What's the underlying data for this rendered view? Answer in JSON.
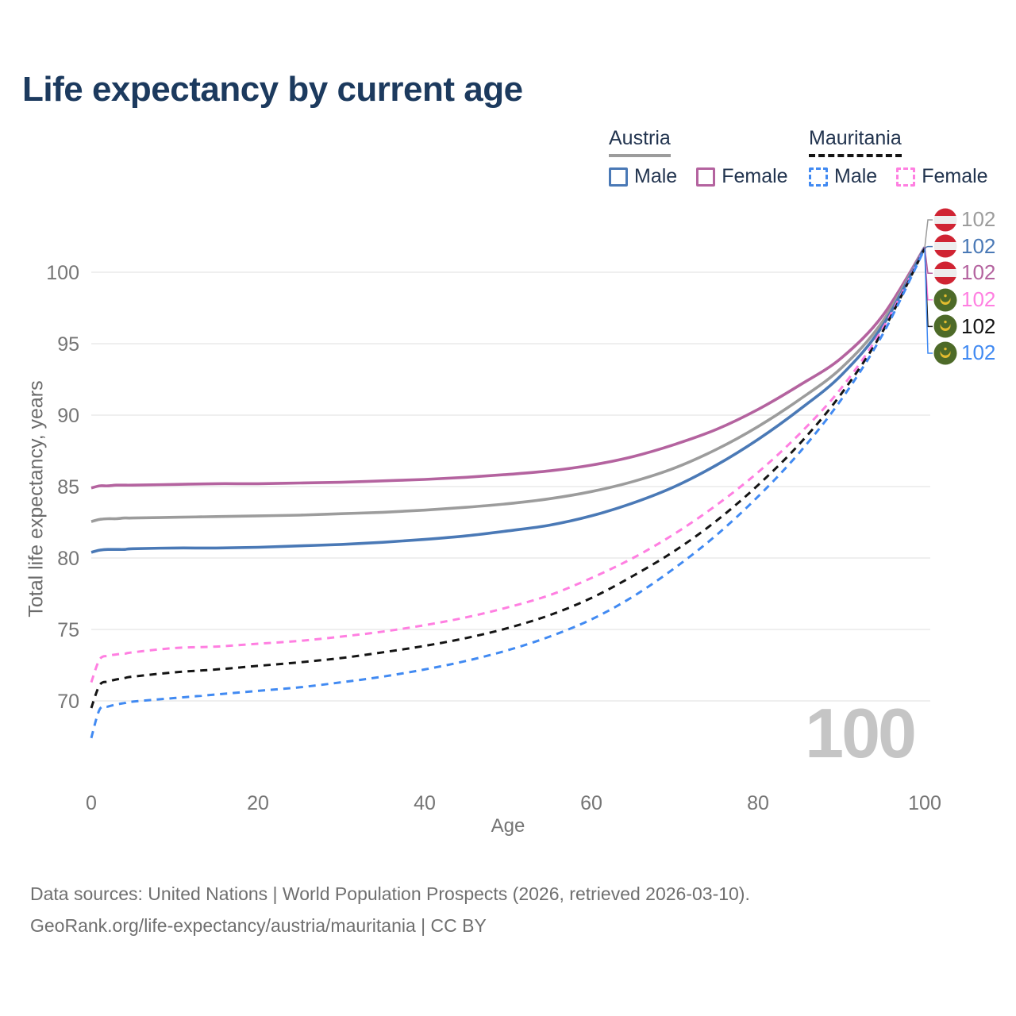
{
  "title": "Life expectancy by current age",
  "watermark": "100",
  "legend": {
    "groups": [
      {
        "country": "Austria",
        "line_style": "solid",
        "line_color": "#9c9c9c",
        "items": [
          {
            "label": "Male",
            "color": "#4a79b6",
            "dashed": false
          },
          {
            "label": "Female",
            "color": "#b4639f",
            "dashed": false
          }
        ]
      },
      {
        "country": "Mauritania",
        "line_style": "dashed",
        "line_color": "#141414",
        "items": [
          {
            "label": "Male",
            "color": "#418af2",
            "dashed": true
          },
          {
            "label": "Female",
            "color": "#ff7fe1",
            "dashed": true
          }
        ]
      }
    ]
  },
  "chart_data": {
    "type": "line",
    "title": "Life expectancy by current age",
    "xlabel": "Age",
    "ylabel": "Total life expectancy, years",
    "xticks": [
      0,
      20,
      40,
      60,
      80,
      100
    ],
    "yticks": [
      70,
      75,
      80,
      85,
      90,
      95,
      100
    ],
    "xlim": [
      0,
      100
    ],
    "ylim": [
      66,
      103
    ],
    "grid": "horizontal",
    "x": [
      0,
      1,
      2,
      3,
      4,
      5,
      10,
      15,
      20,
      25,
      30,
      35,
      40,
      45,
      50,
      55,
      60,
      65,
      70,
      75,
      80,
      85,
      90,
      95,
      100
    ],
    "series": [
      {
        "id": "austria-female",
        "name": "Austria Female",
        "color": "#b4639f",
        "dash": false,
        "values": [
          84.9,
          85.05,
          85.05,
          85.1,
          85.1,
          85.1,
          85.15,
          85.2,
          85.2,
          85.25,
          85.3,
          85.4,
          85.5,
          85.65,
          85.85,
          86.1,
          86.5,
          87.1,
          87.95,
          89.0,
          90.4,
          92.1,
          94.0,
          97.0,
          101.75
        ]
      },
      {
        "id": "austria-total",
        "name": "Austria",
        "color": "#9c9c9c",
        "dash": false,
        "values": [
          82.55,
          82.7,
          82.75,
          82.75,
          82.8,
          82.8,
          82.85,
          82.9,
          82.95,
          83.0,
          83.1,
          83.2,
          83.35,
          83.55,
          83.8,
          84.15,
          84.65,
          85.35,
          86.3,
          87.6,
          89.2,
          91.1,
          93.3,
          96.6,
          101.73
        ]
      },
      {
        "id": "austria-male",
        "name": "Austria Male",
        "color": "#4a79b6",
        "dash": false,
        "values": [
          80.4,
          80.55,
          80.6,
          80.6,
          80.6,
          80.65,
          80.7,
          80.7,
          80.75,
          80.85,
          80.95,
          81.1,
          81.3,
          81.55,
          81.9,
          82.3,
          82.95,
          83.85,
          85.0,
          86.5,
          88.3,
          90.4,
          92.8,
          96.3,
          101.72
        ]
      },
      {
        "id": "mauritania-female",
        "name": "Mauritania Female",
        "color": "#ff7fe1",
        "dash": true,
        "values": [
          71.3,
          72.9,
          73.15,
          73.25,
          73.3,
          73.4,
          73.7,
          73.8,
          74.0,
          74.2,
          74.5,
          74.85,
          75.3,
          75.85,
          76.55,
          77.4,
          78.6,
          80.0,
          81.7,
          83.7,
          86.0,
          88.7,
          91.9,
          96.1,
          101.7
        ]
      },
      {
        "id": "mauritania-total",
        "name": "Mauritania",
        "color": "#141414",
        "dash": true,
        "values": [
          69.5,
          71.1,
          71.35,
          71.5,
          71.6,
          71.7,
          72.0,
          72.2,
          72.45,
          72.7,
          73.0,
          73.4,
          73.85,
          74.4,
          75.1,
          76.0,
          77.2,
          78.75,
          80.5,
          82.6,
          85.1,
          88.0,
          91.5,
          95.9,
          101.68
        ]
      },
      {
        "id": "mauritania-male",
        "name": "Mauritania Male",
        "color": "#418af2",
        "dash": true,
        "values": [
          67.4,
          69.4,
          69.6,
          69.75,
          69.85,
          69.95,
          70.2,
          70.45,
          70.7,
          70.95,
          71.3,
          71.7,
          72.2,
          72.8,
          73.55,
          74.5,
          75.7,
          77.3,
          79.3,
          81.6,
          84.3,
          87.4,
          91.1,
          95.7,
          101.65
        ]
      }
    ]
  },
  "end_labels": [
    {
      "value": "102",
      "flag": "austria",
      "color": "#9c9c9c",
      "series": "austria-total"
    },
    {
      "value": "102",
      "flag": "austria",
      "color": "#4a79b6",
      "series": "austria-male"
    },
    {
      "value": "102",
      "flag": "austria",
      "color": "#b4639f",
      "series": "austria-female"
    },
    {
      "value": "102",
      "flag": "mauritania",
      "color": "#ff7fe1",
      "series": "mauritania-female"
    },
    {
      "value": "102",
      "flag": "mauritania",
      "color": "#141414",
      "series": "mauritania-total"
    },
    {
      "value": "102",
      "flag": "mauritania",
      "color": "#418af2",
      "series": "mauritania-male"
    }
  ],
  "source": {
    "line1": "Data sources: United Nations | World Population Prospects (2026, retrieved 2026-03-10).",
    "line2": "GeoRank.org/life-expectancy/austria/mauritania | CC BY"
  }
}
